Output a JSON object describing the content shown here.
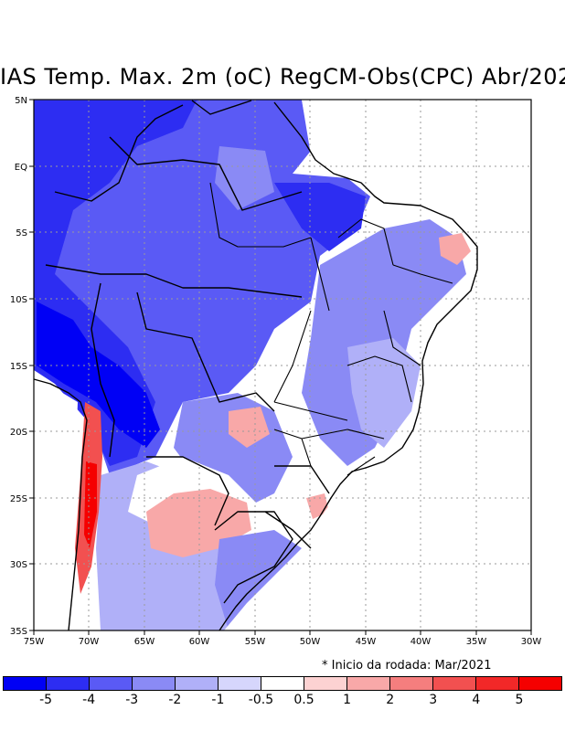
{
  "title": "IAS Temp. Max. 2m (oC) RegCM-Obs(CPC) Abr/202",
  "note": "* Inicio da rodada: Mar/2021",
  "lat_labels": [
    "5N",
    "EQ",
    "5S",
    "10S",
    "15S",
    "20S",
    "25S",
    "30S",
    "35S"
  ],
  "lon_labels": [
    "75W",
    "70W",
    "65W",
    "60W",
    "55W",
    "50W",
    "45W",
    "40W",
    "35W",
    "30W"
  ],
  "legend": {
    "labels": [
      "-5",
      "-4",
      "-3",
      "-2",
      "-1",
      "-0.5",
      "0.5",
      "1",
      "2",
      "3",
      "4",
      "5"
    ],
    "colors": [
      "#0000f5",
      "#2d2df2",
      "#5a5af5",
      "#8a8af5",
      "#b0b0f8",
      "#d6d6fc",
      "#ffffff",
      "#fcd2d2",
      "#f8a8a8",
      "#f57e7e",
      "#f25050",
      "#f22828",
      "#f50000"
    ]
  }
}
